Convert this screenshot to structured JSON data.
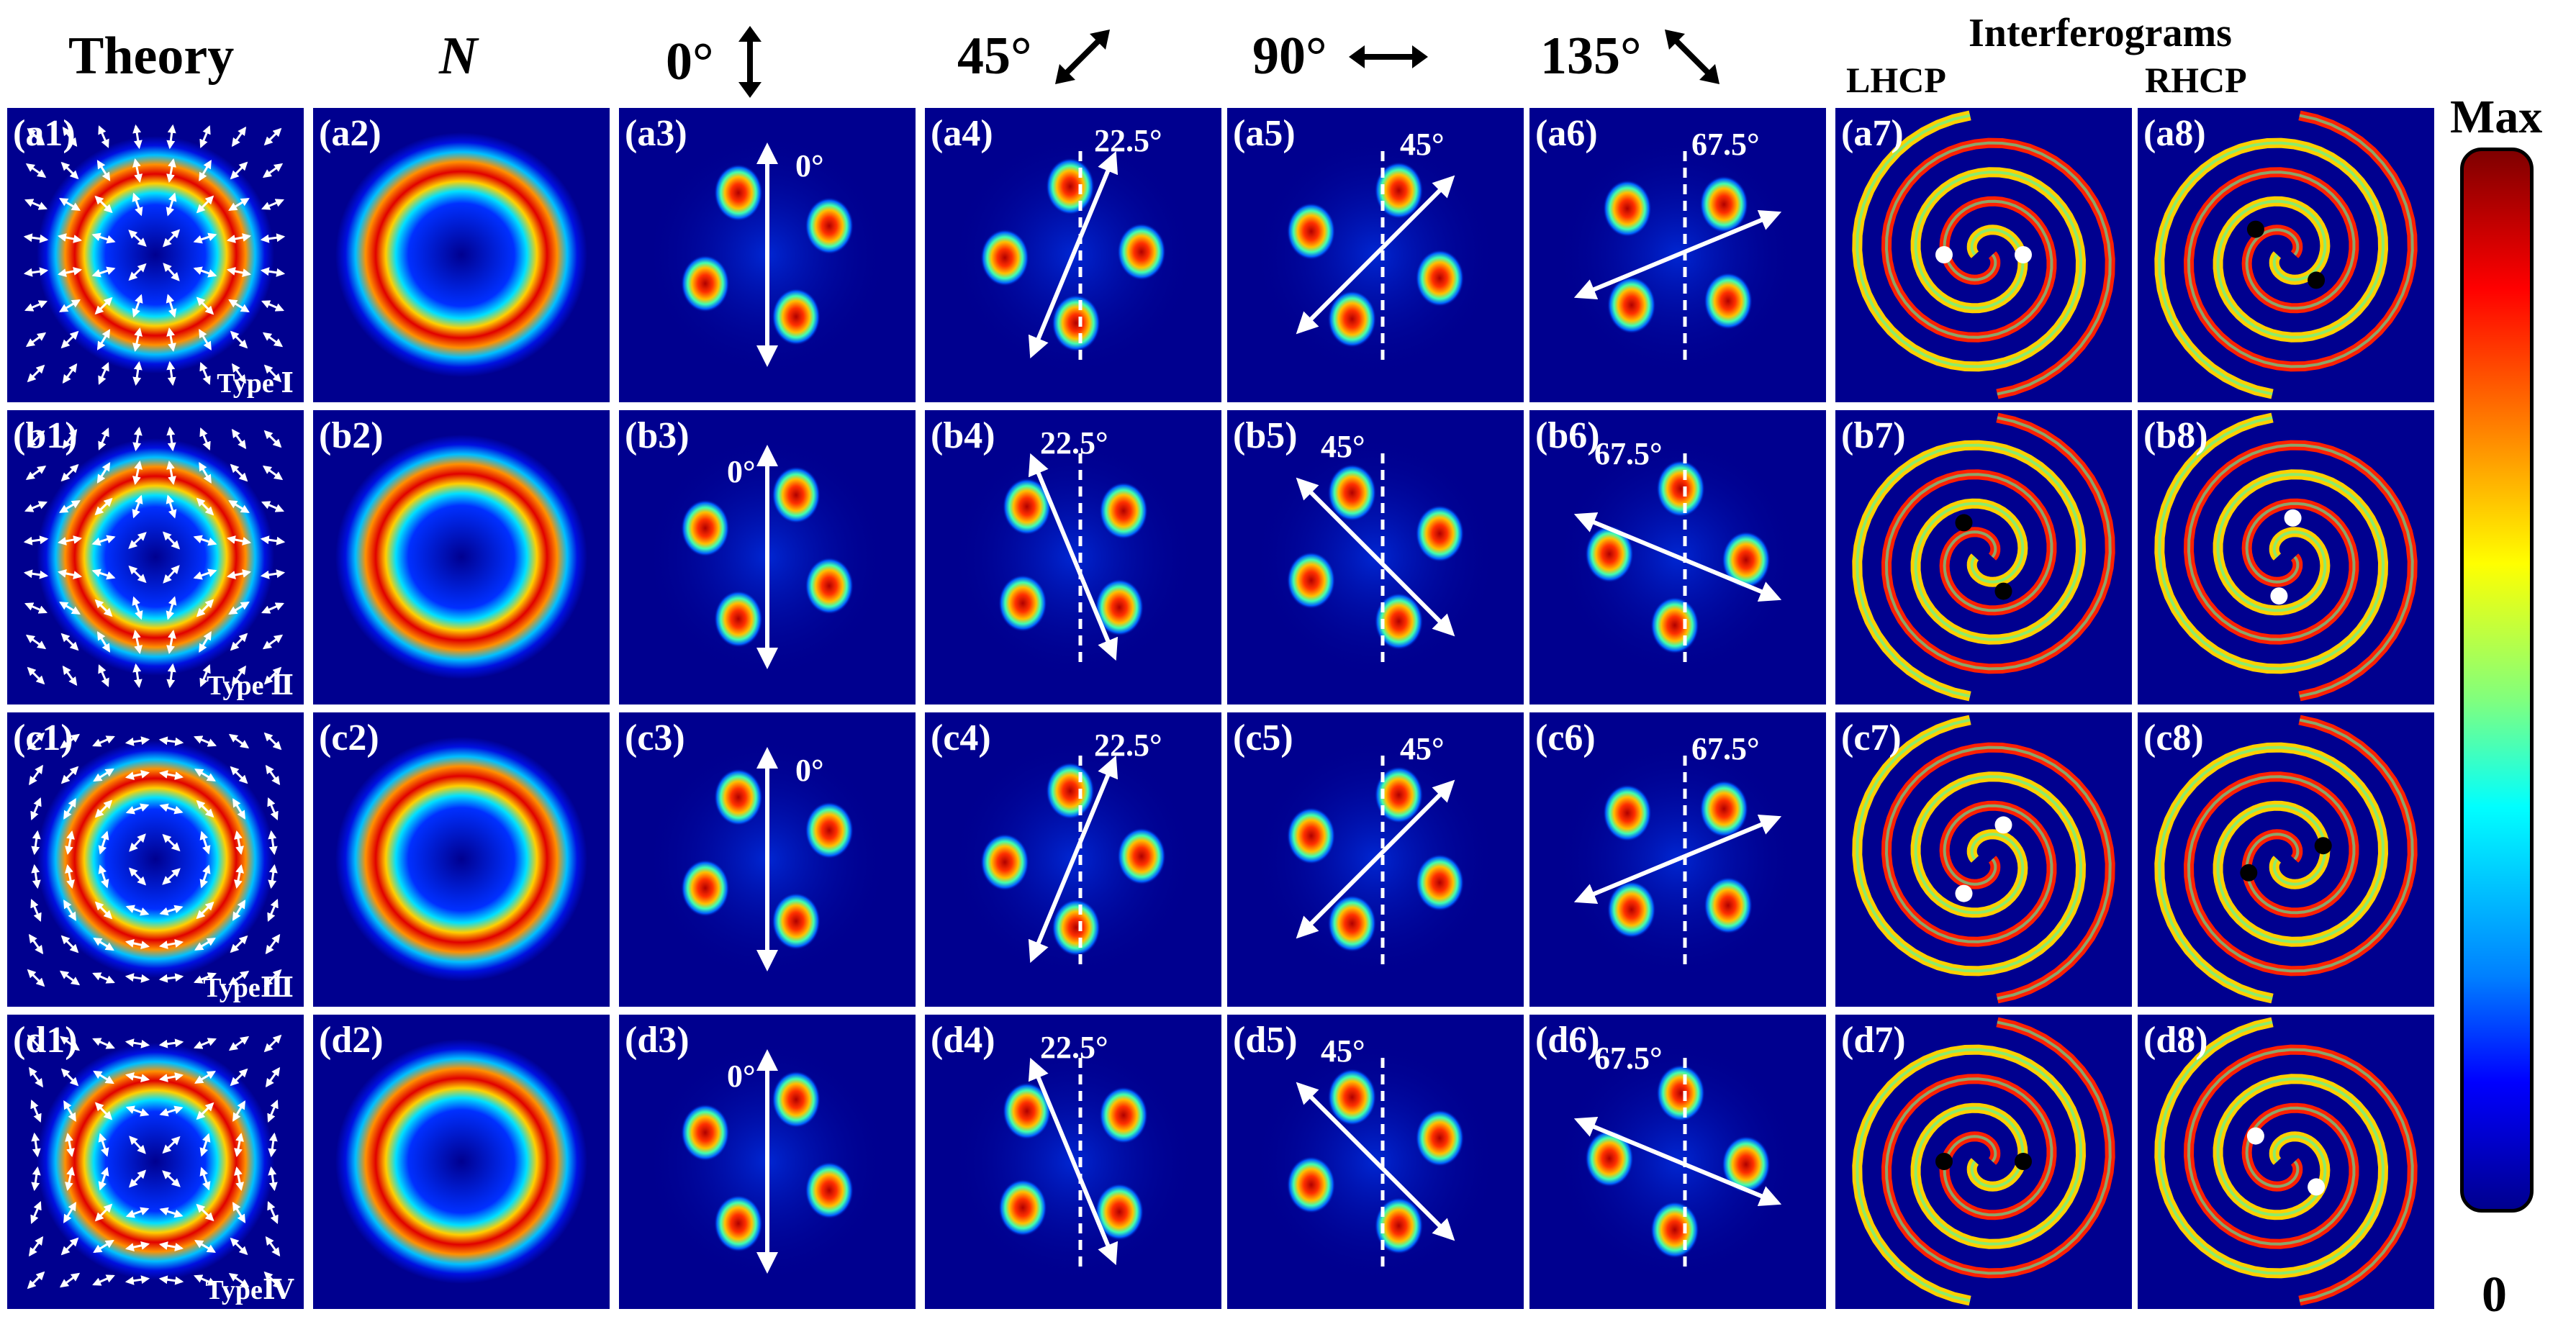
{
  "headers": {
    "theory": "Theory",
    "n": "N",
    "deg0": "0°",
    "deg45": "45°",
    "deg90": "90°",
    "deg135": "135°",
    "interferograms": "Interferograms",
    "lhcp": "LHCP",
    "rhcp": "RHCP"
  },
  "colorbar": {
    "max": "Max",
    "min": "0",
    "colors": [
      "#7f0000",
      "#ff0000",
      "#ff7f00",
      "#ffff00",
      "#7fff7f",
      "#00ffff",
      "#0080ff",
      "#0000ff",
      "#00008f"
    ]
  },
  "rows": [
    {
      "id": "a",
      "type": "Type Ⅰ",
      "labels": [
        "(a1)",
        "(a2)",
        "(a3)",
        "(a4)",
        "(a5)",
        "(a6)",
        "(a7)",
        "(a8)"
      ],
      "angles": [
        "0°",
        "22.5°",
        "45°",
        "67.5°"
      ]
    },
    {
      "id": "b",
      "type": "Type Ⅱ",
      "labels": [
        "(b1)",
        "(b2)",
        "(b3)",
        "(b4)",
        "(b5)",
        "(b6)",
        "(b7)",
        "(b8)"
      ],
      "angles": [
        "0°",
        "22.5°",
        "45°",
        "67.5°"
      ]
    },
    {
      "id": "c",
      "type": "TypeⅢ",
      "labels": [
        "(c1)",
        "(c2)",
        "(c3)",
        "(c4)",
        "(c5)",
        "(c6)",
        "(c7)",
        "(c8)"
      ],
      "angles": [
        "0°",
        "22.5°",
        "45°",
        "67.5°"
      ]
    },
    {
      "id": "d",
      "type": "TypeⅣ",
      "labels": [
        "(d1)",
        "(d2)",
        "(d3)",
        "(d4)",
        "(d5)",
        "(d6)",
        "(d7)",
        "(d8)"
      ],
      "angles": [
        "0°",
        "22.5°",
        "45°",
        "67.5°"
      ]
    }
  ]
}
